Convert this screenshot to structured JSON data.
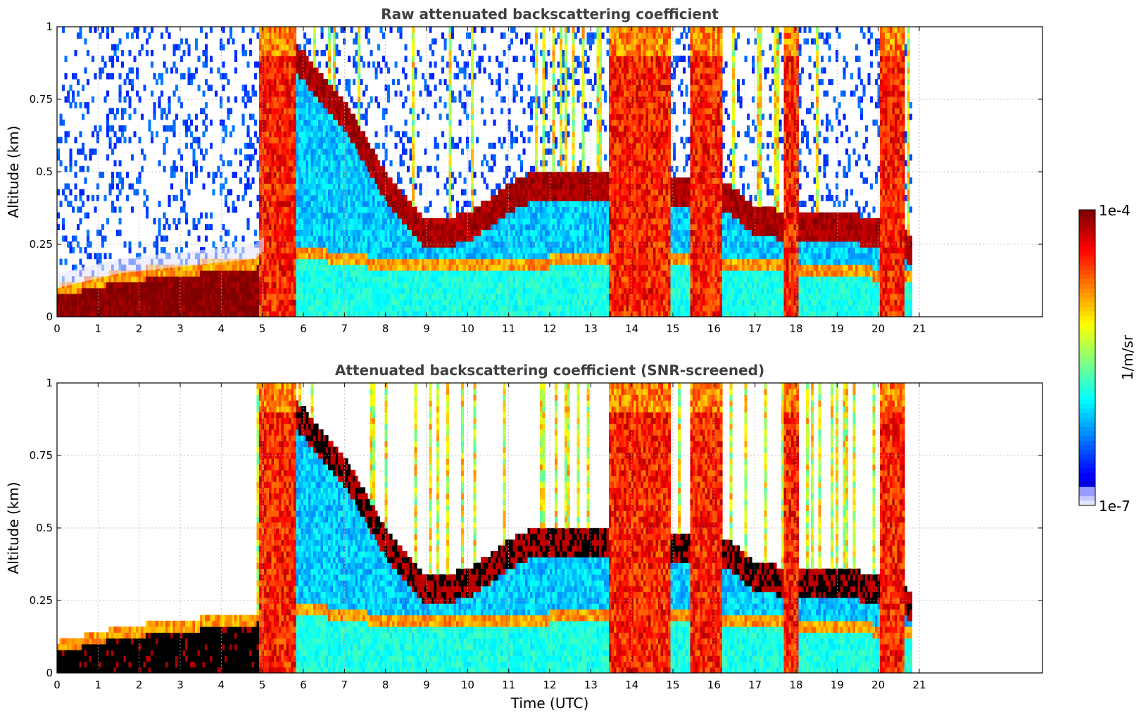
{
  "chart_data": [
    {
      "type": "heatmap",
      "title": "Raw attenuated backscattering coefficient",
      "xlabel": "",
      "ylabel": "Altitude (km)",
      "x_ticks": [
        "0",
        "1",
        "2",
        "3",
        "4",
        "5",
        "6",
        "7",
        "8",
        "9",
        "10",
        "11",
        "12",
        "13",
        "14",
        "15",
        "16",
        "17",
        "18",
        "19",
        "20",
        "21"
      ],
      "y_ticks": [
        "0",
        "0.25",
        "0.5",
        "0.75",
        "1"
      ],
      "xlim": [
        0,
        24
      ],
      "ylim": [
        0,
        1
      ],
      "data_end_hour": 20.8,
      "grid": true,
      "screened": false,
      "low_layer_top_km": [
        [
          0,
          0.1
        ],
        [
          1.5,
          0.15
        ],
        [
          4.8,
          0.2
        ],
        [
          5.2,
          0.25
        ],
        [
          7.5,
          0.2
        ],
        [
          10.0,
          0.18
        ],
        [
          12.0,
          0.2
        ],
        [
          16.0,
          0.2
        ],
        [
          20.8,
          0.15
        ]
      ],
      "aerosol_layer_km": [
        [
          5.0,
          0.98
        ],
        [
          6.0,
          0.85
        ],
        [
          7.0,
          0.68
        ],
        [
          8.0,
          0.43
        ],
        [
          9.0,
          0.27
        ],
        [
          10.0,
          0.3
        ],
        [
          11.0,
          0.4
        ],
        [
          11.7,
          0.45
        ],
        [
          16.3,
          0.4
        ],
        [
          17.0,
          0.32
        ],
        [
          18.0,
          0.3
        ],
        [
          19.0,
          0.3
        ],
        [
          20.0,
          0.28
        ],
        [
          20.8,
          0.22
        ]
      ],
      "cloud_columns_h": [
        [
          4.9,
          5.8
        ],
        [
          13.4,
          14.9
        ],
        [
          15.4,
          16.2
        ],
        [
          17.7,
          18.0
        ],
        [
          20.0,
          20.6
        ]
      ]
    },
    {
      "type": "heatmap",
      "title": "Attenuated backscattering coefficient (SNR-screened)",
      "xlabel": "Time (UTC)",
      "ylabel": "Altitude (km)",
      "x_ticks": [
        "0",
        "1",
        "2",
        "3",
        "4",
        "5",
        "6",
        "7",
        "8",
        "9",
        "10",
        "11",
        "12",
        "13",
        "14",
        "15",
        "16",
        "17",
        "18",
        "19",
        "20",
        "21"
      ],
      "y_ticks": [
        "0",
        "0.25",
        "0.5",
        "0.75",
        "1"
      ],
      "xlim": [
        0,
        24
      ],
      "ylim": [
        0,
        1
      ],
      "data_end_hour": 20.8,
      "grid": true,
      "screened": true,
      "low_layer_top_km": [
        [
          0,
          0.1
        ],
        [
          1.5,
          0.15
        ],
        [
          4.8,
          0.2
        ],
        [
          5.2,
          0.25
        ],
        [
          7.5,
          0.2
        ],
        [
          10.0,
          0.18
        ],
        [
          12.0,
          0.2
        ],
        [
          16.0,
          0.2
        ],
        [
          20.8,
          0.15
        ]
      ],
      "aerosol_layer_km": [
        [
          5.0,
          0.98
        ],
        [
          6.0,
          0.85
        ],
        [
          7.0,
          0.68
        ],
        [
          8.0,
          0.43
        ],
        [
          9.0,
          0.27
        ],
        [
          10.0,
          0.3
        ],
        [
          11.0,
          0.4
        ],
        [
          11.7,
          0.45
        ],
        [
          16.3,
          0.4
        ],
        [
          17.0,
          0.32
        ],
        [
          18.0,
          0.3
        ],
        [
          19.0,
          0.3
        ],
        [
          20.0,
          0.28
        ],
        [
          20.8,
          0.22
        ]
      ],
      "cloud_columns_h": [
        [
          4.9,
          5.8
        ],
        [
          13.4,
          14.9
        ],
        [
          15.4,
          16.2
        ],
        [
          17.7,
          18.0
        ],
        [
          20.0,
          20.6
        ]
      ]
    }
  ],
  "colorbar": {
    "max_label": "1e-4",
    "min_label": "1e-7",
    "unit_label": "1/m/sr",
    "colormap": "jet",
    "below_range_color": "#e6e6ff",
    "saturated_color_screened": "#000000"
  }
}
